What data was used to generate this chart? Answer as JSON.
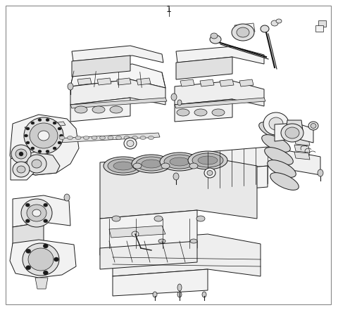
{
  "title": "1",
  "background_color": "#ffffff",
  "border_color": "#888888",
  "stroke_color": "#1a1a1a",
  "fig_width": 4.8,
  "fig_height": 4.41,
  "dpi": 100,
  "fill_light": "#f2f2f2",
  "fill_white": "#ffffff",
  "fill_mid": "#e0e0e0",
  "fill_dark": "#cccccc"
}
